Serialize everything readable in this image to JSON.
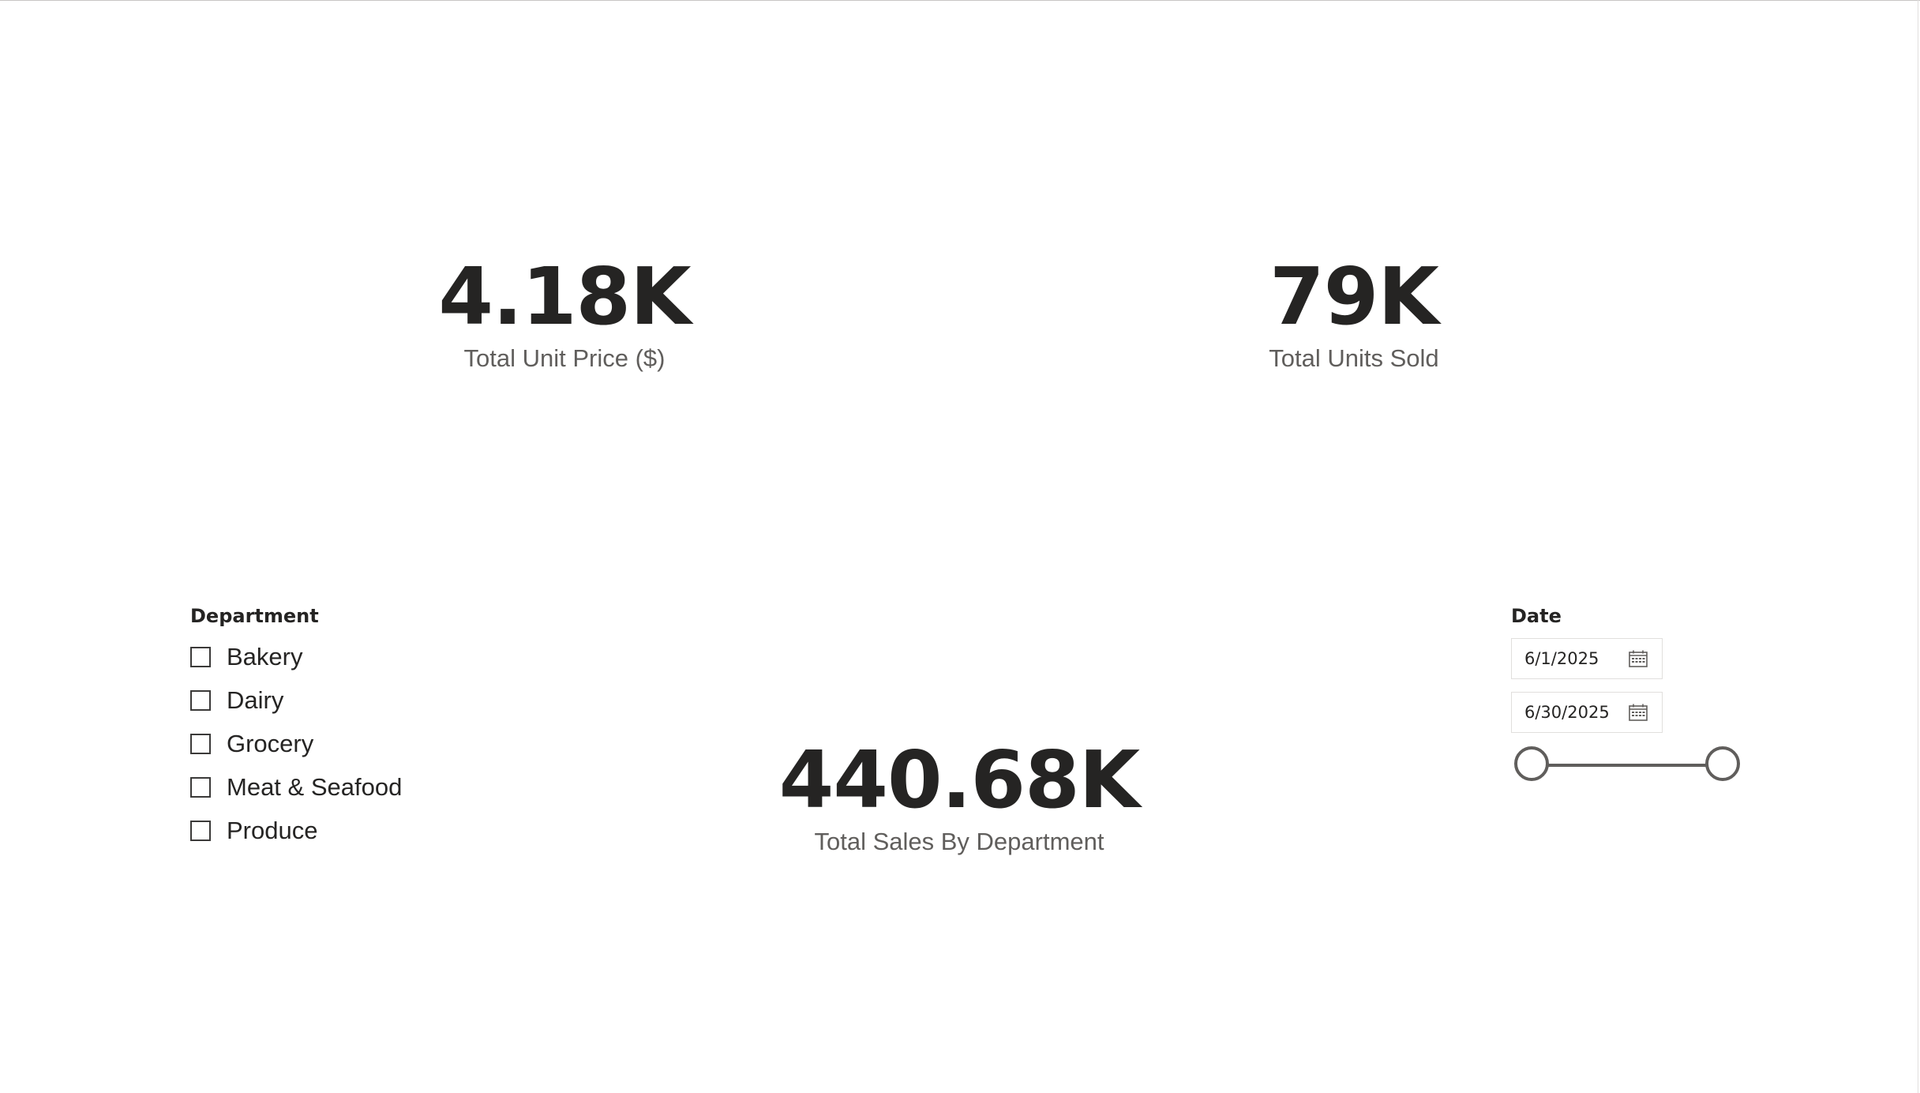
{
  "cards": {
    "unit_price": {
      "value": "4.18K",
      "label": "Total Unit Price ($)"
    },
    "units_sold": {
      "value": "79K",
      "label": "Total Units Sold"
    },
    "sales": {
      "value": "440.68K",
      "label": "Total Sales By Department"
    }
  },
  "department_slicer": {
    "title": "Department",
    "items": [
      {
        "label": "Bakery",
        "checked": false
      },
      {
        "label": "Dairy",
        "checked": false
      },
      {
        "label": "Grocery",
        "checked": false
      },
      {
        "label": "Meat & Seafood",
        "checked": false
      },
      {
        "label": "Produce",
        "checked": false
      }
    ]
  },
  "date_slicer": {
    "title": "Date",
    "start": "6/1/2025",
    "end": "6/30/2025",
    "icon": "calendar-icon",
    "range_fraction": [
      0,
      1
    ]
  },
  "colors": {
    "text_primary": "#252423",
    "text_secondary": "#605e5c",
    "slider": "#605e5c",
    "border": "#e1dfdd"
  }
}
